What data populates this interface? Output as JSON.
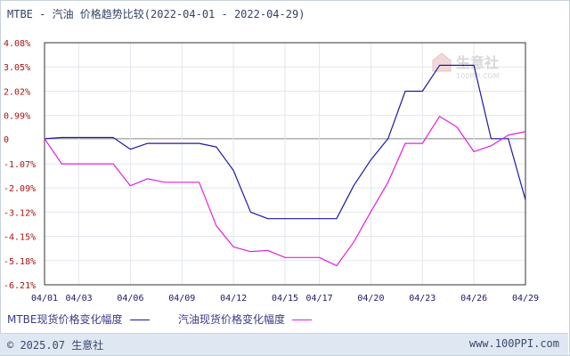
{
  "title": "MTBE - 汽油 价格趋势比较(2022-04-01 - 2022-04-29)",
  "watermark": {
    "text": "生意社",
    "sub": "100PPI.COM"
  },
  "footer": {
    "left": "© 2025.07 生意社",
    "right": "www.100PPI.com"
  },
  "colors": {
    "series1": "#1a1aa8",
    "series2": "#e020e0",
    "grid": "#e2e6ee",
    "zero": "#888888",
    "axis": "#333333",
    "ticktext": "#aa1111",
    "xtick": "#1a1a6a"
  },
  "chart_data": {
    "type": "line",
    "title": "MTBE - 汽油 价格趋势比较(2022-04-01 - 2022-04-29)",
    "xlabel": "",
    "ylabel": "",
    "x_tick_labels": [
      "04/01",
      "04/03",
      "04/06",
      "04/09",
      "04/12",
      "04/15",
      "04/17",
      "04/20",
      "04/23",
      "04/26",
      "04/29"
    ],
    "y_tick_labels": [
      "4.08%",
      "3.05%",
      "2.02%",
      "0.99%",
      "0",
      "-1.07%",
      "-2.09%",
      "-3.12%",
      "-4.15%",
      "-5.18%",
      "-6.21%"
    ],
    "y_tick_values": [
      4.08,
      3.05,
      2.02,
      0.99,
      0,
      -1.07,
      -2.09,
      -3.12,
      -4.15,
      -5.18,
      -6.21
    ],
    "ylim": [
      -6.21,
      4.08
    ],
    "grid": true,
    "legend_position": "bottom-left",
    "x": [
      "04/01",
      "04/02",
      "04/03",
      "04/04",
      "04/05",
      "04/06",
      "04/07",
      "04/08",
      "04/09",
      "04/10",
      "04/11",
      "04/12",
      "04/13",
      "04/14",
      "04/15",
      "04/16",
      "04/17",
      "04/18",
      "04/19",
      "04/20",
      "04/21",
      "04/22",
      "04/23",
      "04/24",
      "04/25",
      "04/26",
      "04/27",
      "04/28",
      "04/29"
    ],
    "series": [
      {
        "name": "MTBE现货价格变化幅度",
        "color": "#1a1aa8",
        "values": [
          0,
          0.05,
          0.05,
          0.05,
          0.05,
          -0.45,
          -0.2,
          -0.2,
          -0.2,
          -0.2,
          -0.35,
          -1.35,
          -3.12,
          -3.4,
          -3.4,
          -3.4,
          -3.4,
          -3.4,
          -2.0,
          -0.9,
          0.0,
          2.02,
          2.02,
          3.12,
          3.12,
          3.12,
          0.0,
          0.0,
          -2.6
        ]
      },
      {
        "name": "汽油现货价格变化幅度",
        "color": "#e020e0",
        "values": [
          0,
          -1.07,
          -1.07,
          -1.07,
          -1.07,
          -2.0,
          -1.7,
          -1.85,
          -1.85,
          -1.85,
          -3.7,
          -4.6,
          -4.8,
          -4.75,
          -5.05,
          -5.05,
          -5.05,
          -5.4,
          -4.4,
          -3.1,
          -1.85,
          -0.2,
          -0.2,
          0.95,
          0.5,
          -0.55,
          -0.3,
          0.15,
          0.3
        ]
      }
    ]
  }
}
